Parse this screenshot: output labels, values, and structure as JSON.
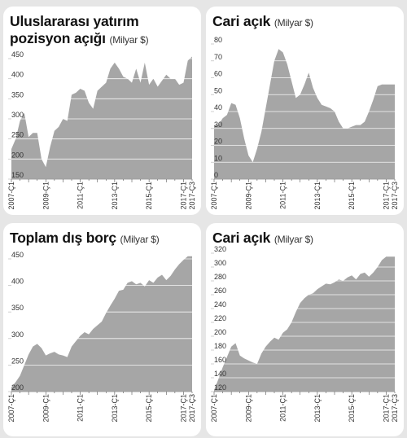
{
  "colors": {
    "area": "#a6a6a6",
    "grid": "#c4c4c4",
    "text": "#333333"
  },
  "chart_data": [
    {
      "type": "area",
      "title": "Uluslararası yatırım pozisyon açığı",
      "title_line1": "Uluslararası yatırım",
      "title_line2": "pozisyon açığı",
      "unit": "(Milyar $)",
      "ylim": [
        150,
        450
      ],
      "yticks": [
        150,
        200,
        250,
        300,
        350,
        400,
        450
      ],
      "xtick_labels": [
        "2007-Ç1",
        "2009-Ç1",
        "2011-Ç1",
        "2013-Ç1",
        "2015-Ç1",
        "2017-Ç1",
        "2017-Ç3"
      ],
      "xtick_positions": [
        0,
        8,
        16,
        24,
        32,
        40,
        42
      ],
      "x_range": [
        0,
        42
      ],
      "values": [
        225,
        250,
        295,
        315,
        255,
        265,
        265,
        200,
        180,
        230,
        270,
        280,
        300,
        295,
        360,
        365,
        375,
        370,
        340,
        325,
        370,
        380,
        390,
        425,
        440,
        425,
        405,
        400,
        390,
        425,
        390,
        440,
        385,
        400,
        380,
        395,
        410,
        400,
        400,
        385,
        390,
        445,
        455
      ]
    },
    {
      "type": "area",
      "title": "Cari açık",
      "unit": "(Milyar $)",
      "ylim": [
        0,
        80
      ],
      "yticks": [
        0,
        10,
        20,
        30,
        40,
        50,
        60,
        70,
        80
      ],
      "xtick_labels": [
        "2007-Ç1",
        "2009-Ç1",
        "2011-Ç1",
        "2013-Ç1",
        "2015-Ç1",
        "2017-Ç1",
        "2017-Ç3"
      ],
      "xtick_positions": [
        0,
        8,
        16,
        24,
        32,
        40,
        42
      ],
      "x_range": [
        0,
        42
      ],
      "values": [
        32,
        32,
        36,
        38,
        45,
        44,
        36,
        24,
        14,
        10,
        18,
        28,
        42,
        56,
        70,
        77,
        75,
        68,
        58,
        48,
        50,
        56,
        63,
        54,
        48,
        44,
        43,
        42,
        40,
        34,
        30,
        30,
        31,
        32,
        32,
        34,
        40,
        47,
        55,
        56,
        56,
        56,
        56
      ]
    },
    {
      "type": "area",
      "title": "Toplam dış borç",
      "unit": "(Milyar $)",
      "ylim": [
        200,
        450
      ],
      "yticks": [
        200,
        250,
        300,
        350,
        400,
        450
      ],
      "xtick_labels": [
        "2007-Ç1",
        "2009-Ç1",
        "2011-Ç1",
        "2013-Ç1",
        "2015-Ç1",
        "2017-Ç1",
        "2017-Ç3"
      ],
      "xtick_positions": [
        0,
        8,
        16,
        24,
        32,
        40,
        42
      ],
      "x_range": [
        0,
        42
      ],
      "values": [
        208,
        218,
        230,
        250,
        270,
        285,
        290,
        282,
        268,
        272,
        275,
        270,
        268,
        265,
        285,
        295,
        305,
        312,
        308,
        318,
        325,
        332,
        348,
        362,
        375,
        390,
        392,
        405,
        408,
        402,
        405,
        398,
        410,
        405,
        415,
        420,
        410,
        418,
        430,
        440,
        448,
        455,
        455
      ]
    },
    {
      "type": "area",
      "title": "Cari açık",
      "unit": "(Milyar $)",
      "ylim": [
        120,
        320
      ],
      "yticks": [
        120,
        140,
        160,
        180,
        200,
        220,
        240,
        260,
        280,
        300,
        320
      ],
      "xtick_labels": [
        "2007-Ç1",
        "2009-Ç1",
        "2011-Ç1",
        "2013-Ç1",
        "2015-Ç1",
        "2017-Ç1",
        "2017-Ç3"
      ],
      "xtick_positions": [
        0,
        8,
        16,
        24,
        32,
        40,
        42
      ],
      "x_range": [
        0,
        42
      ],
      "values": [
        122,
        138,
        155,
        170,
        185,
        190,
        172,
        168,
        165,
        162,
        160,
        175,
        185,
        192,
        198,
        195,
        205,
        210,
        220,
        235,
        248,
        255,
        260,
        262,
        268,
        272,
        276,
        275,
        278,
        282,
        280,
        285,
        288,
        282,
        290,
        292,
        286,
        292,
        300,
        310,
        315,
        315,
        315
      ]
    }
  ]
}
